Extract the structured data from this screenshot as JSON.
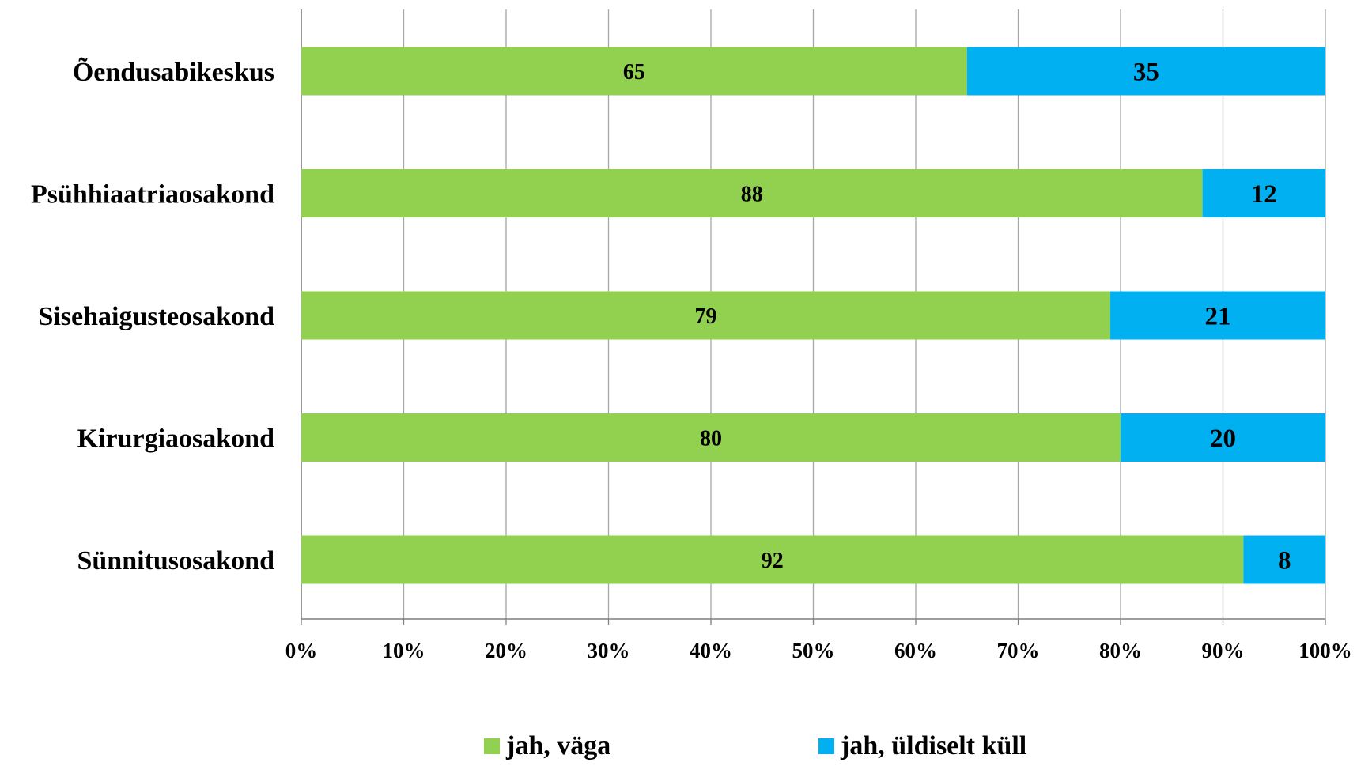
{
  "chart_data": {
    "type": "bar",
    "orientation": "horizontal",
    "stacked": "percent",
    "categories": [
      "Õendusabikeskus",
      "Psühhiaatriaosakond",
      "Sisehaigusteosakond",
      "Kirurgiaosakond",
      "Sünnitusosakond"
    ],
    "series": [
      {
        "name": "jah, väga",
        "color": "#92D050",
        "values": [
          65,
          88,
          79,
          80,
          92
        ]
      },
      {
        "name": "jah, üldiselt küll",
        "color": "#00B0F0",
        "values": [
          35,
          12,
          21,
          20,
          8
        ]
      }
    ],
    "xlim": [
      0,
      100
    ],
    "xticks": [
      "0%",
      "10%",
      "20%",
      "30%",
      "40%",
      "50%",
      "60%",
      "70%",
      "80%",
      "90%",
      "100%"
    ],
    "grid": "vertical",
    "legend_position": "bottom",
    "title": "",
    "xlabel": "",
    "ylabel": ""
  }
}
